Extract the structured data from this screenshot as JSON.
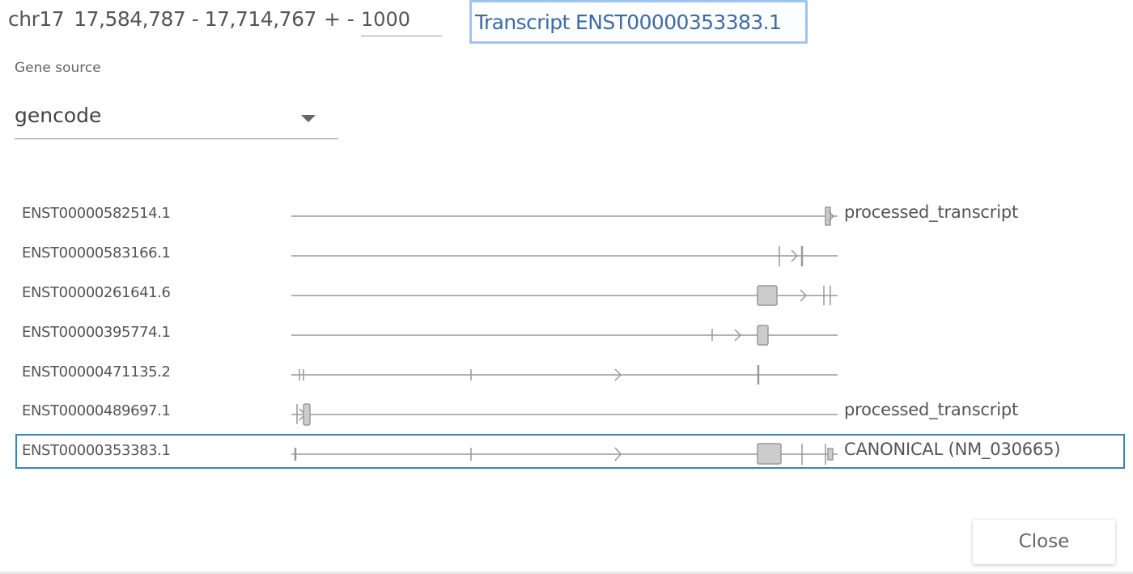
{
  "header": {
    "chromosome": "chr17",
    "range": "17,584,787 - 17,714,767",
    "flank_prefix": "+ -",
    "flank_value": "1000",
    "transcript_button": "Transcript ENST00000353383.1"
  },
  "gene_source": {
    "label": "Gene source",
    "selected": "gencode"
  },
  "transcripts": [
    {
      "id": "ENST00000582514.1",
      "biotype": "processed_transcript"
    },
    {
      "id": "ENST00000583166.1",
      "biotype": ""
    },
    {
      "id": "ENST00000261641.6",
      "biotype": ""
    },
    {
      "id": "ENST00000395774.1",
      "biotype": ""
    },
    {
      "id": "ENST00000471135.2",
      "biotype": ""
    },
    {
      "id": "ENST00000489697.1",
      "biotype": "processed_transcript"
    },
    {
      "id": "ENST00000353383.1",
      "biotype": "CANONICAL (NM_030665)",
      "selected": true
    }
  ],
  "actions": {
    "close_label": "Close"
  },
  "colors": {
    "track_line": "#999999",
    "exon_fill": "#cccccc",
    "selection_border": "#3b85b8",
    "transcript_button_text": "#3e6aa3",
    "transcript_button_border": "#9cc4ee"
  }
}
